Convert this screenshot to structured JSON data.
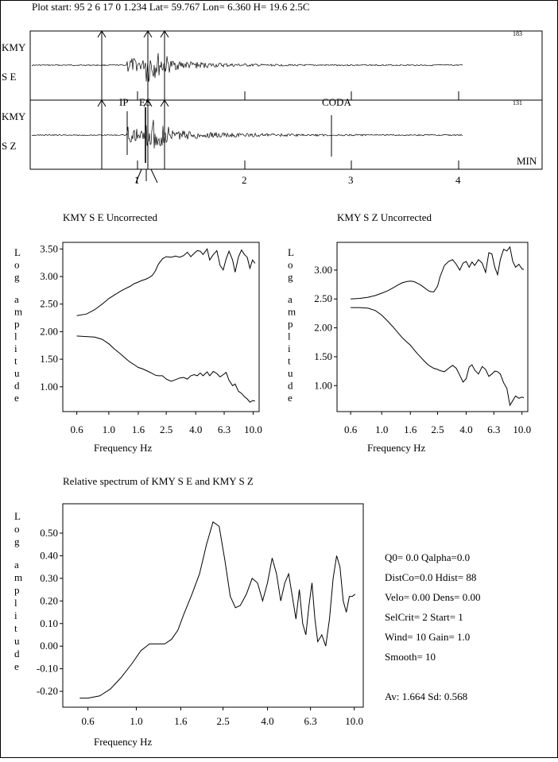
{
  "header": {
    "plot_start": "Plot start: 95  2  6 17  0  1.234  Lat= 59.767 Lon=    6.360  H= 19.6 2.5C"
  },
  "traces": [
    {
      "station": "KMY",
      "component": "S  E",
      "scale": "183"
    },
    {
      "station": "KMY",
      "component": "S  Z",
      "scale": "131"
    }
  ],
  "phases": {
    "ip": "IP",
    "es": "ES",
    "coda": "CODA"
  },
  "time_axis": {
    "ticks": [
      "1",
      "2",
      "3",
      "4"
    ],
    "unit": "MIN"
  },
  "chart_data": [
    {
      "type": "line",
      "title": "KMY   S  E  Uncorrected",
      "ylabel": "Log amplitude",
      "xlabel": "Frequency  Hz",
      "x_scale": "log",
      "x_ticks": [
        0.6,
        1.0,
        1.6,
        2.5,
        4.0,
        6.3,
        10.0
      ],
      "x_tick_labels": [
        "0.6",
        "1.0",
        "1.6",
        "2.5",
        "4.0",
        "6.3",
        "10.0"
      ],
      "y_ticks": [
        1.0,
        1.5,
        2.0,
        2.5,
        3.0,
        3.5
      ],
      "y_tick_labels": [
        "1.00",
        "1.50",
        "2.00",
        "2.50",
        "3.00",
        "3.50"
      ],
      "xlim": [
        0.48,
        11.0
      ],
      "ylim": [
        0.55,
        3.62
      ],
      "series": [
        {
          "x": [
            0.6,
            0.7,
            0.8,
            0.9,
            1.0,
            1.1,
            1.2,
            1.3,
            1.4,
            1.5,
            1.6,
            1.7,
            1.8,
            1.9,
            2.0,
            2.1,
            2.2,
            2.35,
            2.5,
            2.7,
            2.9,
            3.1,
            3.3,
            3.5,
            3.7,
            3.9,
            4.1,
            4.3,
            4.5,
            4.8,
            5.0,
            5.3,
            5.6,
            5.9,
            6.2,
            6.5,
            6.8,
            7.2,
            7.5,
            7.9,
            8.3,
            8.7,
            9.1,
            9.5,
            9.9,
            10.3
          ],
          "y": [
            2.29,
            2.32,
            2.4,
            2.5,
            2.6,
            2.67,
            2.73,
            2.78,
            2.82,
            2.87,
            2.9,
            2.93,
            2.95,
            2.98,
            3.02,
            3.1,
            3.22,
            3.32,
            3.36,
            3.35,
            3.37,
            3.35,
            3.38,
            3.44,
            3.36,
            3.42,
            3.47,
            3.46,
            3.4,
            3.5,
            3.3,
            3.4,
            3.47,
            3.2,
            3.12,
            3.32,
            3.46,
            3.3,
            3.08,
            3.35,
            3.48,
            3.4,
            3.35,
            3.15,
            3.3,
            3.24
          ]
        },
        {
          "x": [
            0.6,
            0.7,
            0.8,
            0.9,
            1.0,
            1.1,
            1.2,
            1.3,
            1.4,
            1.5,
            1.6,
            1.7,
            1.8,
            1.9,
            2.0,
            2.1,
            2.2,
            2.35,
            2.5,
            2.7,
            2.9,
            3.1,
            3.3,
            3.5,
            3.7,
            3.9,
            4.1,
            4.3,
            4.5,
            4.8,
            5.0,
            5.3,
            5.6,
            5.9,
            6.2,
            6.5,
            6.8,
            7.2,
            7.5,
            7.9,
            8.3,
            8.7,
            9.1,
            9.5,
            9.9,
            10.3
          ],
          "y": [
            1.92,
            1.91,
            1.9,
            1.86,
            1.78,
            1.68,
            1.6,
            1.52,
            1.45,
            1.4,
            1.35,
            1.33,
            1.3,
            1.27,
            1.24,
            1.21,
            1.2,
            1.2,
            1.14,
            1.1,
            1.13,
            1.16,
            1.17,
            1.14,
            1.2,
            1.22,
            1.2,
            1.25,
            1.2,
            1.27,
            1.2,
            1.28,
            1.24,
            1.18,
            1.22,
            1.26,
            1.12,
            1.02,
            1.05,
            0.92,
            0.88,
            0.82,
            0.78,
            0.72,
            0.75,
            0.74
          ]
        }
      ]
    },
    {
      "type": "line",
      "title": "KMY   S  Z  Uncorrected",
      "ylabel": "Log amplitude",
      "xlabel": "Frequency  Hz",
      "x_scale": "log",
      "x_ticks": [
        0.6,
        1.0,
        1.6,
        2.5,
        4.0,
        6.3,
        10.0
      ],
      "x_tick_labels": [
        "0.6",
        "1.0",
        "1.6",
        "2.5",
        "4.0",
        "6.3",
        "10.0"
      ],
      "y_ticks": [
        1.0,
        1.5,
        2.0,
        2.5,
        3.0
      ],
      "y_tick_labels": [
        "1.00",
        "1.50",
        "2.00",
        "2.50",
        "3.00"
      ],
      "xlim": [
        0.48,
        11.0
      ],
      "ylim": [
        0.55,
        3.48
      ],
      "series": [
        {
          "x": [
            0.6,
            0.7,
            0.8,
            0.9,
            1.0,
            1.1,
            1.2,
            1.3,
            1.4,
            1.5,
            1.6,
            1.7,
            1.8,
            1.9,
            2.0,
            2.1,
            2.2,
            2.35,
            2.5,
            2.6,
            2.8,
            3.0,
            3.2,
            3.4,
            3.6,
            3.8,
            4.0,
            4.2,
            4.4,
            4.6,
            4.9,
            5.2,
            5.5,
            5.8,
            6.1,
            6.4,
            6.7,
            7.0,
            7.4,
            7.8,
            8.2,
            8.6,
            9.0,
            9.5,
            10.0,
            10.3
          ],
          "y": [
            2.5,
            2.51,
            2.53,
            2.56,
            2.6,
            2.64,
            2.69,
            2.74,
            2.78,
            2.8,
            2.81,
            2.8,
            2.77,
            2.74,
            2.7,
            2.66,
            2.63,
            2.62,
            2.72,
            2.88,
            3.08,
            3.15,
            3.18,
            3.1,
            3.0,
            3.12,
            3.15,
            3.05,
            3.14,
            3.08,
            3.18,
            3.12,
            2.96,
            3.3,
            3.28,
            3.05,
            2.92,
            3.18,
            3.36,
            3.33,
            3.4,
            3.15,
            3.05,
            3.1,
            3.02,
            3.01
          ]
        },
        {
          "x": [
            0.6,
            0.7,
            0.8,
            0.9,
            1.0,
            1.1,
            1.2,
            1.3,
            1.4,
            1.5,
            1.6,
            1.7,
            1.8,
            1.9,
            2.0,
            2.1,
            2.2,
            2.35,
            2.5,
            2.6,
            2.8,
            3.0,
            3.2,
            3.4,
            3.6,
            3.8,
            4.0,
            4.2,
            4.4,
            4.6,
            4.9,
            5.2,
            5.5,
            5.8,
            6.1,
            6.4,
            6.7,
            7.0,
            7.4,
            7.8,
            8.2,
            8.6,
            9.0,
            9.5,
            10.0,
            10.3
          ],
          "y": [
            2.35,
            2.35,
            2.34,
            2.3,
            2.22,
            2.12,
            2.02,
            1.92,
            1.83,
            1.76,
            1.7,
            1.62,
            1.55,
            1.49,
            1.43,
            1.38,
            1.34,
            1.3,
            1.28,
            1.26,
            1.24,
            1.3,
            1.35,
            1.3,
            1.18,
            1.06,
            1.12,
            1.32,
            1.36,
            1.27,
            1.2,
            1.33,
            1.28,
            1.16,
            1.2,
            1.25,
            1.24,
            1.2,
            1.05,
            0.95,
            0.66,
            0.74,
            0.82,
            0.78,
            0.8,
            0.79
          ]
        }
      ]
    },
    {
      "type": "line",
      "title": "Relative spectrum of  KMY  S  E  and  KMY  S  Z",
      "ylabel": "Log amplitude",
      "xlabel": "Frequency  Hz",
      "x_scale": "log",
      "x_ticks": [
        0.6,
        1.0,
        1.6,
        2.5,
        4.0,
        6.3,
        10.0
      ],
      "x_tick_labels": [
        "0.6",
        "1.0",
        "1.6",
        "2.5",
        "4.0",
        "6.3",
        "10.0"
      ],
      "y_ticks": [
        -0.2,
        -0.1,
        0.0,
        0.1,
        0.2,
        0.3,
        0.4,
        0.5
      ],
      "y_tick_labels": [
        "-0.20",
        "-0.10",
        "0.00",
        "0.10",
        "0.20",
        "0.30",
        "0.40",
        "0.50"
      ],
      "xlim": [
        0.46,
        11.0
      ],
      "ylim": [
        -0.27,
        0.63
      ],
      "series": [
        {
          "x": [
            0.55,
            0.6,
            0.68,
            0.76,
            0.85,
            0.95,
            1.05,
            1.15,
            1.25,
            1.35,
            1.45,
            1.55,
            1.65,
            1.8,
            1.95,
            2.1,
            2.25,
            2.4,
            2.55,
            2.7,
            2.85,
            3.0,
            3.2,
            3.4,
            3.6,
            3.8,
            4.0,
            4.2,
            4.4,
            4.6,
            4.8,
            5.0,
            5.2,
            5.4,
            5.6,
            5.8,
            6.0,
            6.2,
            6.4,
            6.6,
            6.8,
            7.1,
            7.4,
            7.7,
            8.0,
            8.3,
            8.6,
            8.9,
            9.2,
            9.5,
            9.8,
            10.1
          ],
          "y": [
            -0.23,
            -0.23,
            -0.22,
            -0.19,
            -0.14,
            -0.08,
            -0.02,
            0.01,
            0.01,
            0.01,
            0.03,
            0.07,
            0.14,
            0.23,
            0.32,
            0.45,
            0.55,
            0.53,
            0.38,
            0.22,
            0.17,
            0.18,
            0.23,
            0.3,
            0.28,
            0.2,
            0.28,
            0.39,
            0.32,
            0.2,
            0.28,
            0.32,
            0.22,
            0.12,
            0.25,
            0.1,
            0.05,
            0.18,
            0.28,
            0.12,
            0.02,
            0.05,
            0.0,
            0.12,
            0.3,
            0.4,
            0.35,
            0.2,
            0.15,
            0.22,
            0.22,
            0.23
          ]
        }
      ]
    }
  ],
  "params": {
    "line1": "Q0=   0.0  Qalpha=0.0",
    "line2": "DistCo=0.0  Hdist=   88",
    "line3": "Velo= 0.00  Dens= 0.00",
    "line4": "SelCrit= 2  Start=   1",
    "line5": "Wind= 10   Gain=  1.0",
    "line6": "Smooth= 10",
    "summary": "Av:  1.664  Sd:  0.568"
  }
}
